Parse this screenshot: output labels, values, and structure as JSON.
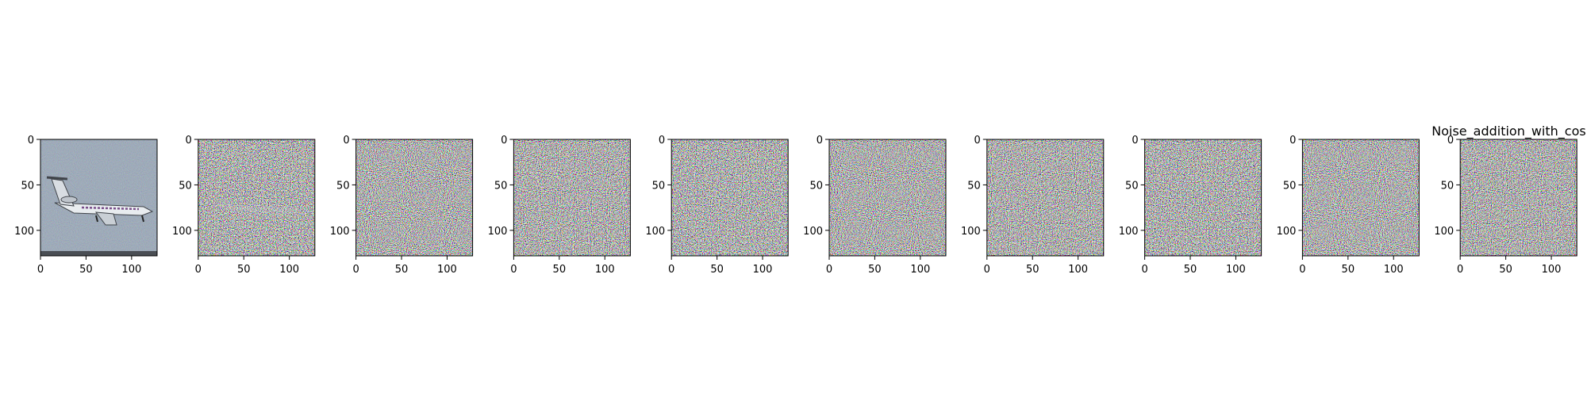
{
  "chart_data": {
    "type": "image_grid",
    "title": "Noise_addition_with_cosine",
    "panel_count": 10,
    "image_size": [
      128,
      128
    ],
    "x_ticks": [
      0,
      50,
      100
    ],
    "y_ticks": [
      0,
      50,
      100
    ],
    "panels": [
      {
        "content": "airplane-photo-slightly-noisy"
      },
      {
        "content": "mostly-noise-faint-airplane"
      },
      {
        "content": "random-noise"
      },
      {
        "content": "random-noise"
      },
      {
        "content": "random-noise"
      },
      {
        "content": "random-noise"
      },
      {
        "content": "random-noise"
      },
      {
        "content": "random-noise"
      },
      {
        "content": "random-noise"
      },
      {
        "content": "random-noise"
      }
    ]
  }
}
